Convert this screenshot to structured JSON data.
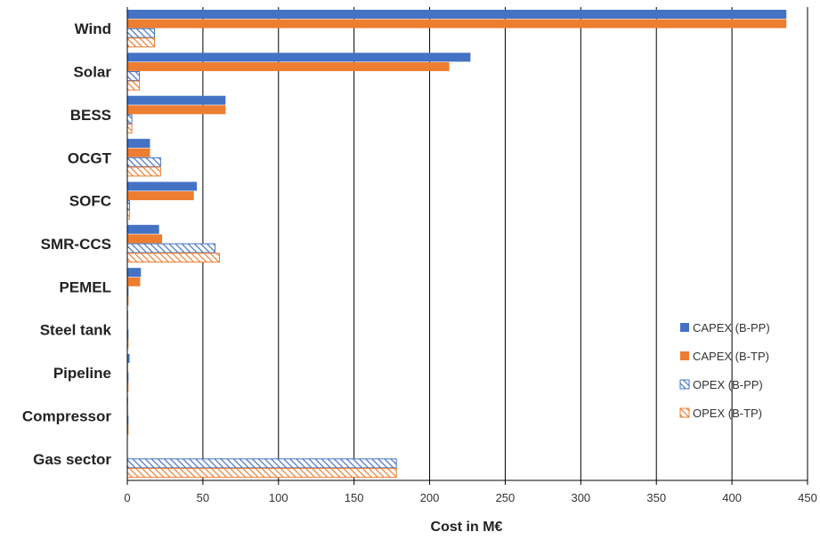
{
  "chart_data": {
    "type": "bar",
    "orientation": "horizontal",
    "xlabel": "Cost in M€",
    "xlim": [
      0,
      450
    ],
    "xticks": [
      0,
      50,
      100,
      150,
      200,
      250,
      300,
      350,
      400,
      450
    ],
    "grid": "vertical",
    "legend": "right",
    "categories": [
      "Wind",
      "Solar",
      "BESS",
      "OCGT",
      "SOFC",
      "SMR-CCS",
      "PEMEL",
      "Steel tank",
      "Pipeline",
      "Compressor",
      "Gas sector"
    ],
    "series": [
      {
        "name": "CAPEX (B-PP)",
        "color": "#4472c4",
        "pattern": "solid",
        "values": [
          436,
          227,
          65,
          15,
          46,
          21,
          9,
          0.5,
          1.5,
          0.5,
          0
        ]
      },
      {
        "name": "CAPEX (B-TP)",
        "color": "#ed7d31",
        "pattern": "solid",
        "values": [
          436,
          213,
          65,
          15,
          44,
          23,
          8.5,
          0.5,
          0.5,
          0.5,
          0
        ]
      },
      {
        "name": "OPEX (B-PP)",
        "color": "#4472c4",
        "pattern": "hatch",
        "values": [
          18,
          8,
          3,
          22,
          1.5,
          58,
          0.5,
          0.3,
          0.3,
          0.3,
          178
        ]
      },
      {
        "name": "OPEX (B-TP)",
        "color": "#ed7d31",
        "pattern": "hatch",
        "values": [
          18,
          8,
          3,
          22,
          1.5,
          61,
          0.5,
          0.3,
          0.3,
          0.3,
          178
        ]
      }
    ]
  }
}
